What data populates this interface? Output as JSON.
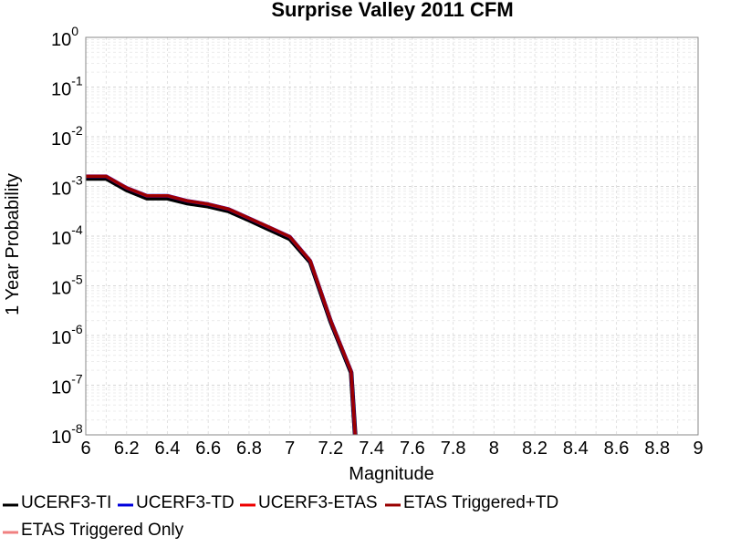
{
  "chart_data": {
    "type": "line",
    "title": "Surprise Valley 2011 CFM",
    "xlabel": "Magnitude",
    "ylabel": "1 Year Probability",
    "xlim": [
      6,
      9
    ],
    "ylim": [
      1e-08,
      1
    ],
    "y_scale": "log",
    "grid": true,
    "legend_position": "bottom",
    "x_ticks": [
      "6",
      "6.2",
      "6.4",
      "6.6",
      "6.8",
      "7",
      "7.2",
      "7.4",
      "7.6",
      "7.8",
      "8",
      "8.2",
      "8.4",
      "8.6",
      "8.8",
      "9"
    ],
    "y_ticks": [
      {
        "base": "10",
        "exp": "0"
      },
      {
        "base": "10",
        "exp": "-1"
      },
      {
        "base": "10",
        "exp": "-2"
      },
      {
        "base": "10",
        "exp": "-3"
      },
      {
        "base": "10",
        "exp": "-4"
      },
      {
        "base": "10",
        "exp": "-5"
      },
      {
        "base": "10",
        "exp": "-6"
      },
      {
        "base": "10",
        "exp": "-7"
      },
      {
        "base": "10",
        "exp": "-8"
      }
    ],
    "series": [
      {
        "name": "UCERF3-TI",
        "color": "#000000",
        "x": [
          6.0,
          6.1,
          6.2,
          6.3,
          6.4,
          6.5,
          6.6,
          6.7,
          6.8,
          6.9,
          7.0,
          7.1,
          7.2,
          7.3,
          7.32
        ],
        "y": [
          0.00145,
          0.00145,
          0.00085,
          0.00058,
          0.00058,
          0.00046,
          0.0004,
          0.00032,
          0.00021,
          0.000136,
          8.8e-05,
          3e-05,
          1.9e-06,
          1.8e-07,
          1e-08
        ]
      },
      {
        "name": "UCERF3-TD",
        "color": "#0000dd",
        "x": [
          6.0,
          6.1,
          6.2,
          6.3,
          6.4,
          6.5,
          6.6,
          6.7,
          6.8,
          6.9,
          7.0,
          7.1,
          7.2,
          7.3,
          7.32
        ],
        "y": [
          0.0016,
          0.0016,
          0.00094,
          0.00065,
          0.00065,
          0.00051,
          0.00044,
          0.00035,
          0.00023,
          0.00015,
          9.7e-05,
          3.2e-05,
          2e-06,
          1.9e-07,
          1e-08
        ]
      },
      {
        "name": "UCERF3-ETAS",
        "color": "#ee0000",
        "x": [
          6.0,
          6.1,
          6.2,
          6.3,
          6.4,
          6.5,
          6.6,
          6.7,
          6.8,
          6.9,
          7.0,
          7.1,
          7.2,
          7.3,
          7.32
        ],
        "y": [
          0.0016,
          0.0016,
          0.00094,
          0.00065,
          0.00065,
          0.00051,
          0.00044,
          0.00035,
          0.00023,
          0.00015,
          9.7e-05,
          3.2e-05,
          2e-06,
          1.9e-07,
          1e-08
        ]
      },
      {
        "name": "ETAS Triggered+TD",
        "color": "#990000",
        "x": [
          6.0,
          6.1,
          6.2,
          6.3,
          6.4,
          6.5,
          6.6,
          6.7,
          6.8,
          6.9,
          7.0,
          7.1,
          7.2,
          7.3,
          7.32
        ],
        "y": [
          0.0016,
          0.0016,
          0.00094,
          0.00065,
          0.00065,
          0.00051,
          0.00044,
          0.00035,
          0.00023,
          0.00015,
          9.7e-05,
          3.2e-05,
          2e-06,
          1.9e-07,
          1e-08
        ]
      },
      {
        "name": "ETAS Triggered Only",
        "color": "#f08080",
        "x": [],
        "y": []
      }
    ]
  }
}
